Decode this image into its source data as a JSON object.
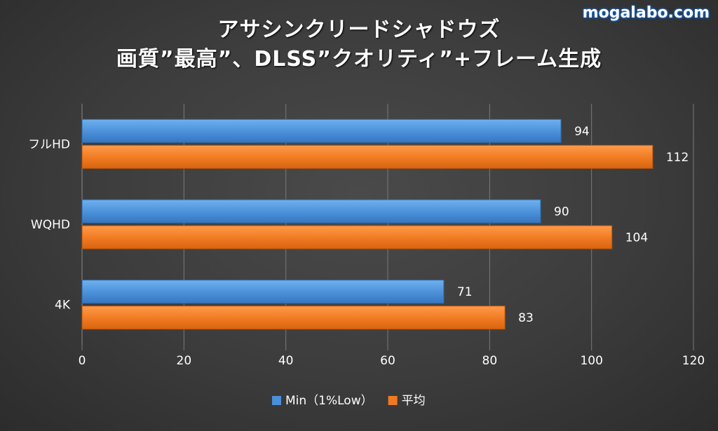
{
  "watermark": "mogalabo.com",
  "chart_data": {
    "type": "bar",
    "orientation": "horizontal",
    "title_lines": [
      "アサシンクリードシャドウズ",
      "画質”最高”、DLSS”クオリティ”+フレーム生成"
    ],
    "categories": [
      "フルHD",
      "WQHD",
      "4K"
    ],
    "series": [
      {
        "name": "Min（1%Low）",
        "values": [
          94,
          90,
          71
        ],
        "color": "#4a90d9"
      },
      {
        "name": "平均",
        "values": [
          112,
          104,
          83
        ],
        "color": "#f07a22"
      }
    ],
    "xlim": [
      0,
      120
    ],
    "xticks": [
      0,
      20,
      40,
      60,
      80,
      100,
      120
    ],
    "grid": true,
    "legend_position": "bottom"
  }
}
